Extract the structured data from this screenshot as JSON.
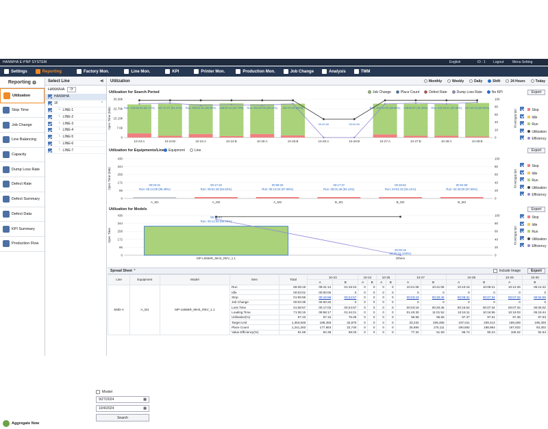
{
  "top": {
    "brand": "HANWHA  E-PNP SYSTEM",
    "lang": "English",
    "user": "ID : 1",
    "logout": "Logout",
    "menu_setting": "Menu Setting"
  },
  "menu": [
    {
      "label": "Settings",
      "icon": "gear-icon"
    },
    {
      "label": "Reporting",
      "icon": "report-icon",
      "active": true
    },
    {
      "label": "Factory Mon.",
      "icon": "factory-icon"
    },
    {
      "label": "Line Mon.",
      "icon": "line-icon"
    },
    {
      "label": "KPI",
      "icon": "kpi-icon"
    },
    {
      "label": "Printer Mon.",
      "icon": "printer-icon"
    },
    {
      "label": "Production Mon.",
      "icon": "production-icon"
    },
    {
      "label": "Job Change",
      "icon": "job-change-icon"
    },
    {
      "label": "Analysis",
      "icon": "analysis-icon"
    },
    {
      "label": "TMM",
      "icon": "tmm-icon"
    }
  ],
  "nav": {
    "title": "Reporting",
    "items": [
      "Utilization",
      "Stop Time",
      "Job Change",
      "Line Balancing",
      "Capacity",
      "Dump Loss Rate",
      "Defect Rate",
      "Defect Summary",
      "Defect Data",
      "KPI Summary",
      "Production Flow"
    ],
    "aggregate": "Aggregate Now"
  },
  "select_line": {
    "title": "Select Line",
    "plant": "HANWHA",
    "root": "HANWHA",
    "floor": "1F",
    "lines": [
      "LINE-1",
      "LINE-2",
      "LINE-3",
      "LINE-4",
      "LINE-5",
      "LINE-6",
      "LINE-7"
    ],
    "model_label": "Model",
    "date_from": "9/27/2024",
    "date_to": "10/4/2024",
    "search": "Search"
  },
  "main": {
    "title": "Utilization",
    "periods": [
      "Monthly",
      "Weekly",
      "Daily",
      "Shift",
      "24 Hours",
      "Today"
    ],
    "period_selected": "Shift",
    "sec1": "Utilization for Search Period",
    "sec1_opts": [
      "Job Change",
      "Place Count",
      "Defect Rate",
      "Dump Loss Rate",
      "No KPI"
    ],
    "sec2": "Utilization for Equipments/Lines",
    "sec2_opts": [
      "Equipment",
      "Line"
    ],
    "sec3": "Utilization for Models",
    "export": "Export",
    "legend": [
      "Stop",
      "Idle",
      "Run",
      "Utilization",
      "Efficiency"
    ],
    "y2label": "Util./Efficiency",
    "ylabel": "Oper. Time (Min)"
  },
  "colors": {
    "run": "#a9d27a",
    "stop": "#f08080",
    "idle": "#f2c85c",
    "util_line": "#333333",
    "eff_line": "#8f86d9",
    "accent": "#f08a24",
    "nav": "#263752"
  },
  "chart_data": [
    {
      "type": "bar",
      "title": "Utilization for Search Period",
      "ylabel": "Oper. Time (Min)",
      "y_ticks": [
        "30.38k",
        "22.79k",
        "15.19k",
        "7.6k",
        "0"
      ],
      "y2_ticks": [
        "100",
        "80",
        "60",
        "40",
        "20",
        "0"
      ],
      "categories": [
        "10-23:A",
        "10-23:B",
        "10-24:A",
        "10-24:B",
        "10-25:A",
        "10-25:B",
        "10-26:A",
        "10-26:B",
        "10-27:A",
        "10-27:B",
        "10-28:A",
        "10-28:B"
      ],
      "run_labels": [
        "Run: 415:54:39 (82.12%)",
        "447:47:27 (91.41%)",
        "Run: 396:02:31 (85.35%)",
        "436:02:14 (92.79%)",
        "Run: 364:00:00 (85.11%)",
        "422:07:03 (90%)",
        "00:00:00",
        "00:00:00",
        "Run: 397:10:00 (86.86%)",
        "428:56:57 (91.48%)",
        "Run: 418:33:41 (90.58%)",
        "447:42:20 (95.46%)"
      ],
      "run": [
        0.82,
        0.91,
        0.85,
        0.93,
        0.85,
        0.9,
        0,
        0,
        0.87,
        0.91,
        0.9,
        0.95
      ],
      "stop": [
        0.12,
        0.05,
        0.1,
        0.04,
        0.1,
        0.06,
        0,
        0,
        0.09,
        0.05,
        0.05,
        0.03
      ],
      "utilization": [
        97,
        97,
        97,
        97,
        97,
        97,
        48,
        48,
        97,
        97,
        97,
        97
      ],
      "efficiency": [
        88,
        90,
        84,
        86,
        84,
        88,
        0,
        0,
        88,
        90,
        88,
        92
      ]
    },
    {
      "type": "bar",
      "title": "Utilization for Equipments/Lines",
      "ylabel": "Oper. Time (Min)",
      "y_ticks": [
        "430",
        "344",
        "258",
        "172",
        "86",
        "0"
      ],
      "y2_ticks": [
        "100",
        "80",
        "60",
        "40",
        "20",
        "0"
      ],
      "categories": [
        "A_M1",
        "A_M2",
        "A_M3",
        "B_M1",
        "B_M2",
        "B_M3"
      ],
      "labels": [
        "00:03:31",
        "00:17:32",
        "00:08:26",
        "00:17:37",
        "00:26:52",
        "00:04:59"
      ],
      "run_labels": [
        "Run: 05:14:08 (95.48%)",
        "Run: 05:01:49 (94.52%)",
        "Run: 05:13:34 (97.98%)",
        "Run: 05:01:48 (94.11%)",
        "Run: 04:51:33 (91.11%)",
        "Run: 04:40:29 (97.65%)"
      ]
    },
    {
      "type": "bar",
      "title": "Utilization for Models",
      "ylabel": "Oper. Time",
      "y_ticks": [
        "430",
        "344",
        "258",
        "172",
        "86",
        "0"
      ],
      "y2_ticks": [
        "100",
        "80",
        "60",
        "40",
        "20",
        "0"
      ],
      "categories": [
        "MP-L5556R_MHS_REV_1.1",
        "Others"
      ],
      "top_labels": [
        "05:19:44",
        "00:00:16"
      ],
      "run_labels": [
        "Run: 05:14:08 (95.49%)",
        "00:00:16 (100%)"
      ],
      "run": [
        314,
        0
      ],
      "utilization": [
        97,
        97
      ],
      "efficiency": [
        91,
        0
      ]
    }
  ],
  "sheet": {
    "title": "Spread Sheet",
    "include_image": "Include Image",
    "export": "Export",
    "headers": [
      "Line",
      "Equipment",
      "Model",
      "Item",
      "Total"
    ],
    "dates": [
      "10-23",
      "10-24",
      "10-25",
      "10-27",
      "10-28",
      "10-29",
      "10-30"
    ],
    "shift_a": "A",
    "shift_b": "B",
    "line": "SMD-A",
    "equipment": "A_M1",
    "model": "MP-L5556R_MHS_REV_1.1",
    "rows": [
      {
        "item": "Run",
        "v": [
          "69:39:18",
          "09:41:14",
          "01:19:24",
          "0",
          "0",
          "0",
          "0",
          "10:41:06",
          "10:41:06",
          "10:10:15",
          "10:09:21",
          "10:12:26",
          "05:14:42"
        ]
      },
      {
        "item": "Idle",
        "v": [
          "00:03:01",
          "00:00:05",
          "0",
          "0",
          "0",
          "0",
          "0",
          "0",
          "0",
          "0",
          "0",
          "0",
          "0"
        ]
      },
      {
        "item": "Stop",
        "v": [
          "01:55:56",
          "00:16:58",
          "00:24:57",
          "0",
          "0",
          "0",
          "0",
          "00:03:19",
          "00:20:46",
          "00:08:31",
          "00:07:34",
          "00:07:34",
          "00:04:59"
        ],
        "blue": true
      },
      {
        "item": "Job Change",
        "v": [
          "00:03:39",
          "00:00:20",
          "0",
          "0",
          "0",
          "0",
          "0",
          "0",
          "0",
          "0",
          "0",
          "0",
          "0"
        ]
      },
      {
        "item": "Loss Time",
        "v": [
          "01:58:57",
          "00:17:03",
          "00:24:57",
          "0",
          "0",
          "0",
          "0",
          "00:03:19",
          "00:20:46",
          "00:15:54",
          "00:07:34",
          "00:07:34",
          "00:05:02"
        ]
      },
      {
        "item": "Loading Time",
        "v": [
          "71:38:15",
          "09:58:17",
          "01:44:21",
          "0",
          "0",
          "0",
          "0",
          "01:45:30",
          "11:01:52",
          "10:18:11",
          "10:16:55",
          "10:19:03",
          "05:19:44"
        ]
      },
      {
        "item": "Utilization(%)",
        "v": [
          "97.23",
          "97.15",
          "76.09",
          "0",
          "0",
          "0",
          "0",
          "96.86",
          "96.86",
          "97.37",
          "97.61",
          "97.36",
          "97.63"
        ]
      },
      {
        "item": "Target Unit",
        "v": [
          "1,353,948",
          "188,459",
          "32,870",
          "0",
          "0",
          "0",
          "0",
          "33,232",
          "208,485",
          "197,011",
          "209,412",
          "188,459",
          "195,300"
        ]
      },
      {
        "item": "Place Count",
        "v": [
          "1,241,263",
          "177,663",
          "22,740",
          "0",
          "0",
          "0",
          "0",
          "25,694",
          "170,111",
          "190,582",
          "188,964",
          "167,922",
          "93,303"
        ]
      },
      {
        "item": "Value Efficiency(%)",
        "v": [
          "91.68",
          "94.38",
          "69.03",
          "0",
          "0",
          "0",
          "0",
          "77.32",
          "61.59",
          "96.74",
          "90.24",
          "105.02",
          "92.64"
        ]
      }
    ]
  }
}
